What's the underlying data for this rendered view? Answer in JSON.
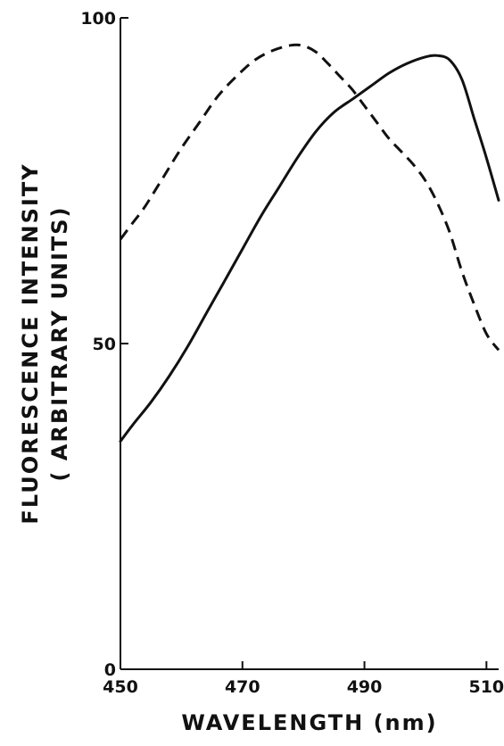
{
  "chart_data": {
    "type": "line",
    "title": "",
    "xlabel": "WAVELENGTH (nm)",
    "ylabel_line1": "FLUORESCENCE INTENSITY",
    "ylabel_line2": "( ARBITRARY UNITS)",
    "xlim": [
      450,
      512
    ],
    "ylim": [
      0,
      100
    ],
    "xticks": [
      {
        "value": 450,
        "label": "450"
      },
      {
        "value": 470,
        "label": "470"
      },
      {
        "value": 490,
        "label": "490"
      },
      {
        "value": 510,
        "label": "510"
      }
    ],
    "yticks": [
      {
        "value": 0,
        "label": "0"
      },
      {
        "value": 50,
        "label": "50"
      },
      {
        "value": 100,
        "label": "100"
      }
    ],
    "grid": false,
    "legend": "none",
    "series": [
      {
        "style": "solid",
        "color": "#111111",
        "x": [
          450,
          452,
          455,
          458,
          461,
          464,
          467,
          470,
          473,
          476,
          479,
          482,
          485,
          488,
          491,
          494,
          497,
          500,
          502,
          504,
          506,
          508,
          510,
          512
        ],
        "y": [
          35,
          37.5,
          41,
          45,
          49.5,
          54.5,
          59.5,
          64.5,
          69.5,
          74,
          78.5,
          82.5,
          85.5,
          87.5,
          89.5,
          91.5,
          93,
          94,
          94.2,
          93.5,
          90.5,
          84.5,
          78.5,
          72
        ]
      },
      {
        "style": "dashed",
        "color": "#111111",
        "x": [
          450,
          452,
          454,
          457,
          460,
          463,
          466,
          469,
          472,
          475,
          478,
          480,
          482,
          484,
          486,
          488,
          490,
          492,
          494,
          496,
          498,
          500,
          502,
          504,
          506,
          508,
          510,
          512
        ],
        "y": [
          66,
          68.5,
          71,
          75.5,
          80,
          84,
          88,
          91,
          93.5,
          95,
          95.8,
          95.7,
          94.8,
          93,
          91,
          89,
          86.5,
          84,
          81.5,
          79.5,
          77.5,
          75,
          71.5,
          67,
          61,
          56,
          51.5,
          49
        ]
      }
    ]
  }
}
